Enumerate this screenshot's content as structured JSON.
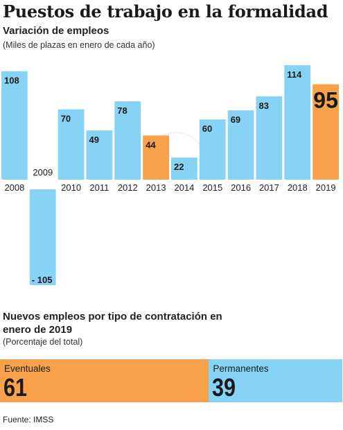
{
  "title": "Puestos de trabajo en la formalidad",
  "subtitle": "Variación de empleos",
  "note": "(Miles de plazas en enero de cada año)",
  "colors": {
    "regular": "#87d3f5",
    "highlight": "#f7a14a"
  },
  "chart_data": {
    "type": "bar",
    "categories": [
      "2008",
      "2009",
      "2010",
      "2011",
      "2012",
      "2013",
      "2014",
      "2015",
      "2016",
      "2017",
      "2018",
      "2019"
    ],
    "values": [
      108,
      -105,
      70,
      49,
      78,
      44,
      22,
      60,
      69,
      83,
      114,
      95
    ],
    "value_labels": [
      "108",
      "- 105",
      "70",
      "49",
      "78",
      "44",
      "22",
      "60",
      "69",
      "83",
      "114",
      "95"
    ],
    "highlight": [
      "2013",
      "2019"
    ],
    "title": "Variación de empleos",
    "ylabel": "(Miles de plazas en enero de cada año)",
    "xlabel": "",
    "ylim": [
      -105,
      114
    ],
    "grid": false,
    "legend": "none"
  },
  "section2": {
    "title": "Nuevos empleos por tipo de contratación en enero de 2019",
    "note": "(Porcentaje del total)",
    "segments": [
      {
        "name": "Eventuales",
        "value": 61,
        "value_label": "61",
        "color": "#f7a14a"
      },
      {
        "name": "Permanentes",
        "value": 39,
        "value_label": "39",
        "color": "#87d3f5"
      }
    ]
  },
  "source": "Fuente: IMSS"
}
